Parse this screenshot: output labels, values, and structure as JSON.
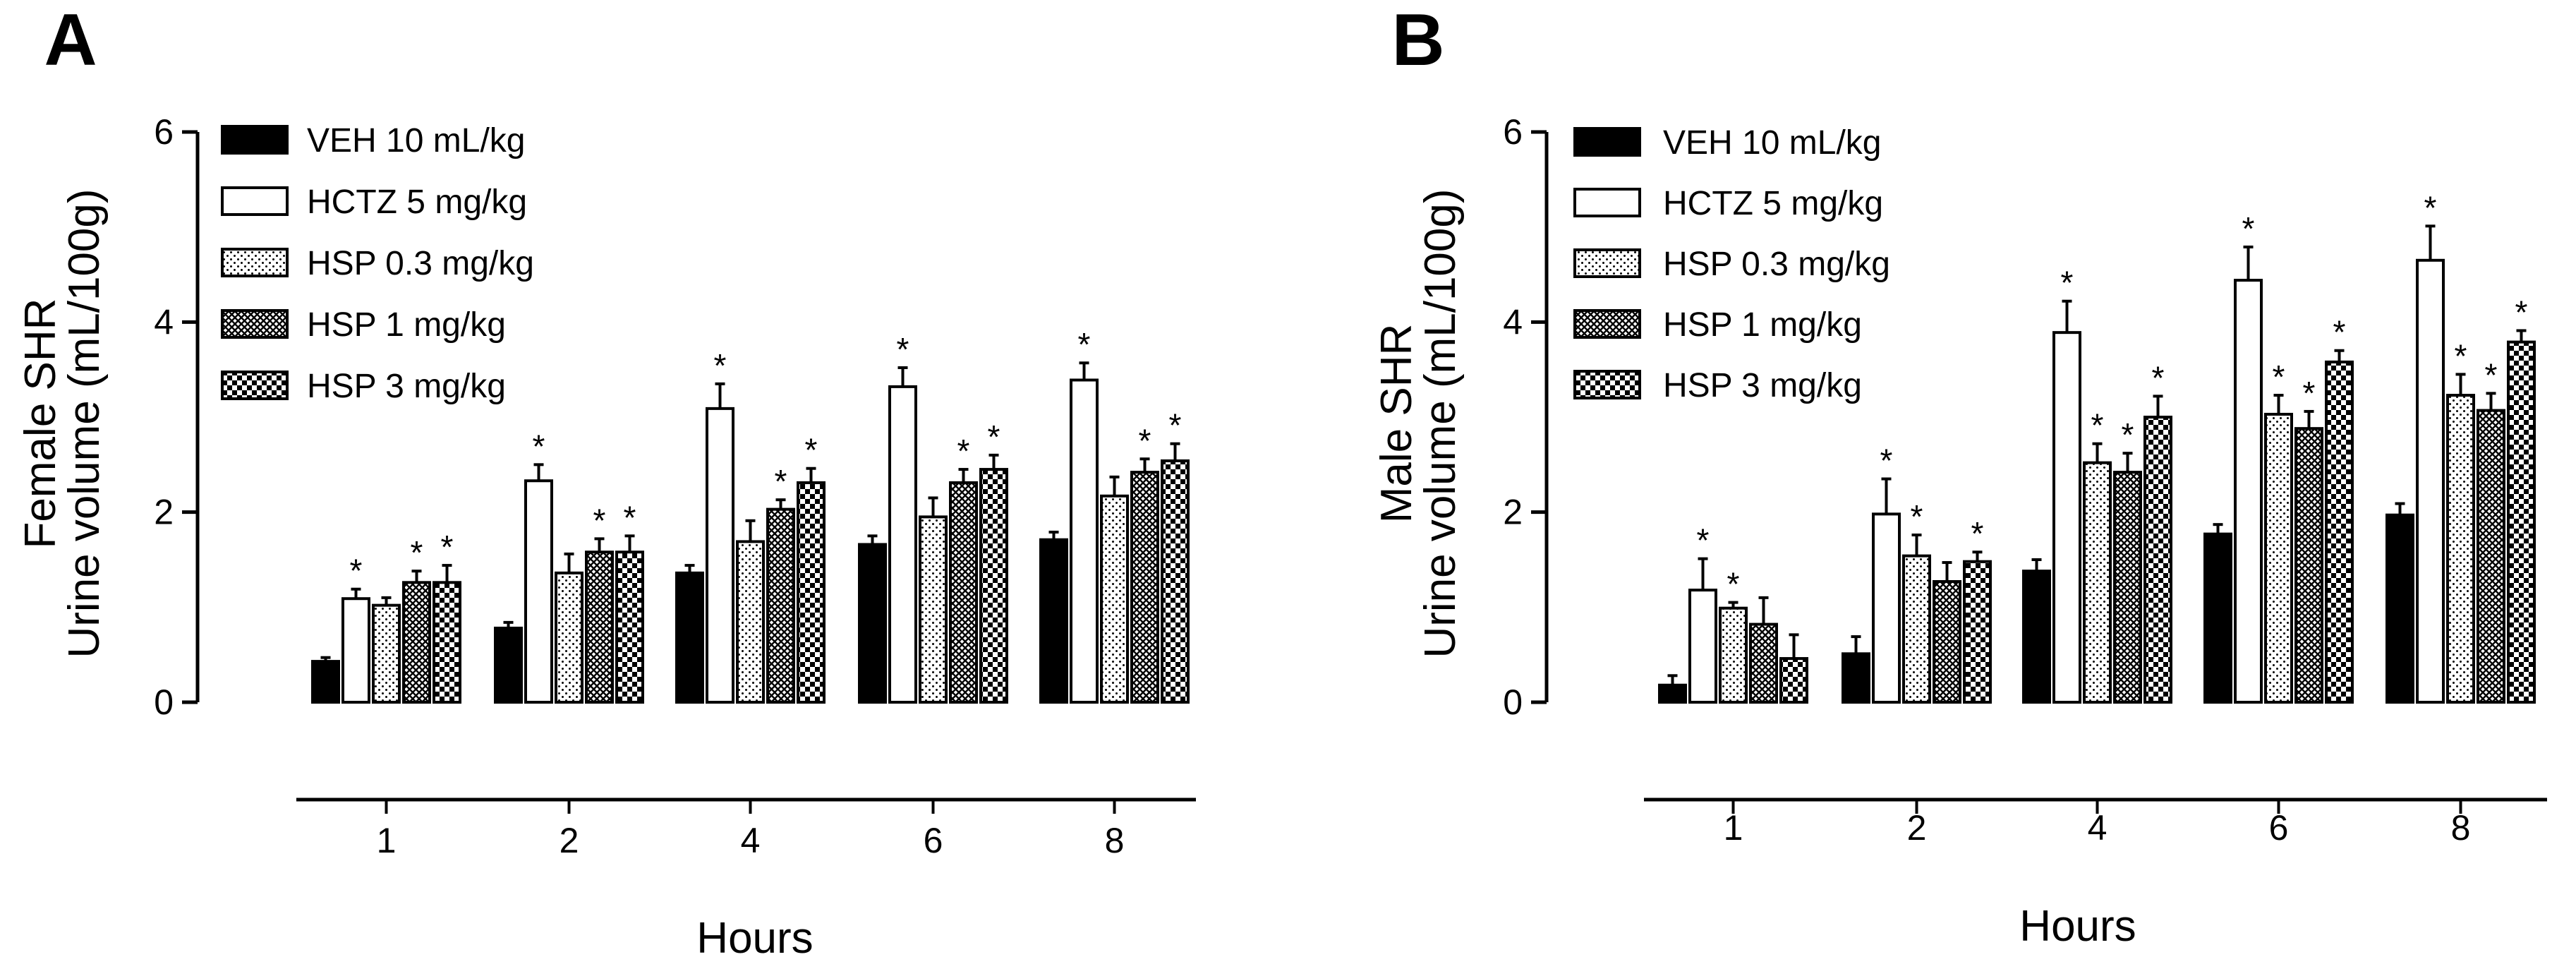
{
  "chart_data": [
    {
      "type": "bar",
      "panel_label": "A",
      "title": "",
      "xlabel": "Hours",
      "ylabel_line1": "Female SHR",
      "ylabel_line2": "Urine volume (mL/100g)",
      "ylim": [
        0,
        6
      ],
      "yticks": [
        "0",
        "2",
        "4",
        "6"
      ],
      "categories": [
        "1",
        "2",
        "4",
        "6",
        "8"
      ],
      "legend_position": "top-left",
      "series": [
        {
          "name": "VEH 10 mL/kg",
          "pattern": "solid",
          "values": [
            0.43,
            0.78,
            1.36,
            1.66,
            1.71
          ],
          "errors": [
            0.04,
            0.06,
            0.08,
            0.09,
            0.08
          ],
          "significant": [
            false,
            false,
            false,
            false,
            false
          ]
        },
        {
          "name": "HCTZ 5 mg/kg",
          "pattern": "open",
          "values": [
            1.09,
            2.33,
            3.09,
            3.32,
            3.39
          ],
          "errors": [
            0.1,
            0.17,
            0.26,
            0.2,
            0.18
          ],
          "significant": [
            true,
            true,
            true,
            true,
            true
          ]
        },
        {
          "name": "HSP 0.3 mg/kg",
          "pattern": "dots",
          "values": [
            1.02,
            1.36,
            1.69,
            1.95,
            2.17
          ],
          "errors": [
            0.08,
            0.2,
            0.22,
            0.2,
            0.2
          ],
          "significant": [
            false,
            false,
            false,
            false,
            false
          ]
        },
        {
          "name": "HSP 1 mg/kg",
          "pattern": "crosshatch",
          "values": [
            1.26,
            1.58,
            2.03,
            2.31,
            2.42
          ],
          "errors": [
            0.12,
            0.14,
            0.1,
            0.14,
            0.14
          ],
          "significant": [
            true,
            true,
            true,
            true,
            true
          ]
        },
        {
          "name": "HSP 3 mg/kg",
          "pattern": "checker",
          "values": [
            1.26,
            1.58,
            2.31,
            2.45,
            2.54
          ],
          "errors": [
            0.18,
            0.17,
            0.15,
            0.15,
            0.18
          ],
          "significant": [
            true,
            true,
            true,
            true,
            true
          ]
        }
      ]
    },
    {
      "type": "bar",
      "panel_label": "B",
      "title": "",
      "xlabel": "Hours",
      "ylabel_line1": "Male SHR",
      "ylabel_line2": "Urine volume (mL/100g)",
      "ylim": [
        0,
        6
      ],
      "yticks": [
        "0",
        "2",
        "4",
        "6"
      ],
      "categories": [
        "1",
        "2",
        "4",
        "6",
        "8"
      ],
      "legend_position": "top-left",
      "series": [
        {
          "name": "VEH 10 mL/kg",
          "pattern": "solid",
          "values": [
            0.18,
            0.51,
            1.38,
            1.77,
            1.97
          ],
          "errors": [
            0.1,
            0.18,
            0.12,
            0.1,
            0.12
          ],
          "significant": [
            false,
            false,
            false,
            false,
            false
          ]
        },
        {
          "name": "HCTZ 5 mg/kg",
          "pattern": "open",
          "values": [
            1.18,
            1.98,
            3.89,
            4.44,
            4.65
          ],
          "errors": [
            0.33,
            0.37,
            0.33,
            0.35,
            0.36
          ],
          "significant": [
            true,
            true,
            true,
            true,
            true
          ]
        },
        {
          "name": "HSP 0.3 mg/kg",
          "pattern": "dots",
          "values": [
            0.99,
            1.54,
            2.52,
            3.03,
            3.23
          ],
          "errors": [
            0.06,
            0.22,
            0.2,
            0.2,
            0.22
          ],
          "significant": [
            true,
            true,
            true,
            true,
            true
          ]
        },
        {
          "name": "HSP 1 mg/kg",
          "pattern": "crosshatch",
          "values": [
            0.82,
            1.27,
            2.42,
            2.88,
            3.07
          ],
          "errors": [
            0.28,
            0.2,
            0.2,
            0.18,
            0.18
          ],
          "significant": [
            false,
            false,
            true,
            true,
            true
          ]
        },
        {
          "name": "HSP 3 mg/kg",
          "pattern": "checker",
          "values": [
            0.46,
            1.48,
            3.0,
            3.58,
            3.79
          ],
          "errors": [
            0.25,
            0.1,
            0.22,
            0.12,
            0.12
          ],
          "significant": [
            false,
            true,
            true,
            true,
            true
          ]
        }
      ]
    }
  ]
}
